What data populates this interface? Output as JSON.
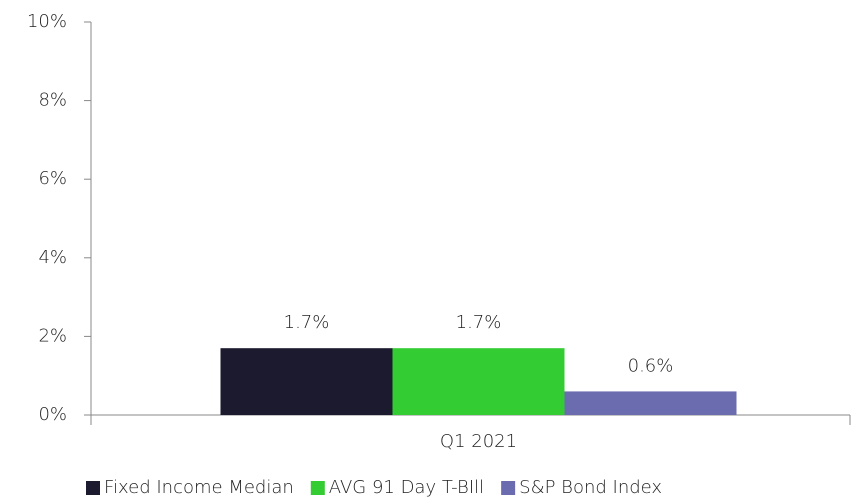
{
  "chart_data": {
    "type": "bar",
    "categories": [
      "Q1 2021"
    ],
    "series": [
      {
        "name": "Fixed Income Median",
        "color": "#1b1a2e",
        "values": [
          1.7
        ],
        "value_labels": [
          "1.7%"
        ]
      },
      {
        "name": "AVG 91 Day T-BIll",
        "color": "#33cc33",
        "values": [
          1.7
        ],
        "value_labels": [
          "1.7%"
        ]
      },
      {
        "name": "S&P Bond Index",
        "color": "#6b6bb0",
        "values": [
          0.6
        ],
        "value_labels": [
          "0.6%"
        ]
      }
    ],
    "ylim": [
      0,
      10
    ],
    "yticks": [
      {
        "value": 0,
        "label": "0%"
      },
      {
        "value": 2,
        "label": "2%"
      },
      {
        "value": 4,
        "label": "4%"
      },
      {
        "value": 6,
        "label": "6%"
      },
      {
        "value": 8,
        "label": "8%"
      },
      {
        "value": 10,
        "label": "10%"
      }
    ],
    "grid": false,
    "legend": "bottom"
  }
}
